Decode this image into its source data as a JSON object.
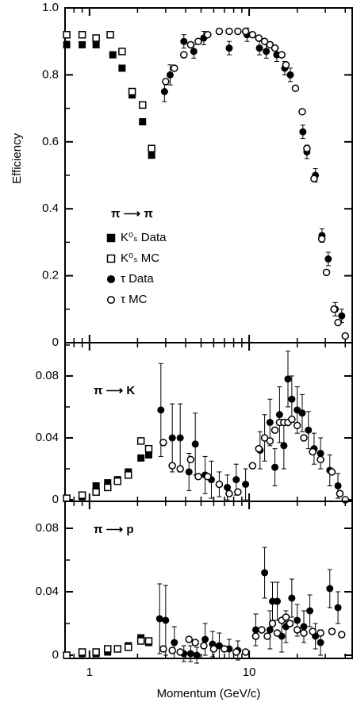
{
  "chart_data": [
    {
      "type": "scatter",
      "ylabel": "Efficiency",
      "annotation": "π ⟶ π",
      "xlim": [
        0.703,
        44.2
      ],
      "log_x": true,
      "xticks": [
        1,
        10
      ],
      "xminorticks": [
        0.8,
        0.9,
        2,
        3,
        4,
        5,
        6,
        7,
        8,
        9,
        20,
        30,
        40
      ],
      "ylim": [
        0,
        1
      ],
      "yticks": [
        0,
        0.2,
        0.4,
        0.6,
        0.8,
        {
          "value": 1,
          "label": "1.0"
        }
      ],
      "yminorticks": [
        0.1,
        0.3,
        0.5,
        0.7,
        0.9
      ],
      "series": [
        {
          "name": "K⁰ₛ Data",
          "marker": "square-filled",
          "x": [
            0.72,
            0.9,
            1.1,
            1.4,
            1.6,
            1.85,
            2.15,
            2.45
          ],
          "values": [
            0.89,
            0.89,
            0.89,
            0.86,
            0.82,
            0.74,
            0.66,
            0.56
          ]
        },
        {
          "name": "K⁰ₛ MC",
          "marker": "square-open",
          "x": [
            0.72,
            0.9,
            1.1,
            1.35,
            1.6,
            1.85,
            2.15,
            2.45
          ],
          "values": [
            0.92,
            0.92,
            0.91,
            0.92,
            0.87,
            0.75,
            0.71,
            0.58
          ]
        },
        {
          "name": "τ Data",
          "marker": "circle-filled",
          "x": [
            2.95,
            3.2,
            3.9,
            4.5,
            5.2,
            7.5,
            9.7,
            11.6,
            12.8,
            14.9,
            16.7,
            18.1,
            21.7,
            23,
            26,
            28.6,
            31.3,
            34.6,
            38
          ],
          "values": [
            0.75,
            0.8,
            0.9,
            0.87,
            0.91,
            0.88,
            0.92,
            0.88,
            0.87,
            0.86,
            0.82,
            0.8,
            0.63,
            0.57,
            0.5,
            0.32,
            0.25,
            0.1,
            0.08
          ],
          "errors": [
            0.03,
            0.03,
            0.02,
            0.02,
            0.02,
            0.02,
            0.02,
            0.02,
            0.02,
            0.02,
            0.02,
            0.02,
            0.02,
            0.02,
            0.02,
            0.02,
            0.02,
            0.02,
            0.02
          ]
        },
        {
          "name": "τ MC",
          "marker": "circle-open",
          "x": [
            3.0,
            3.4,
            3.9,
            4.3,
            4.8,
            5.5,
            6.5,
            7.5,
            8.5,
            9.5,
            10.5,
            11.5,
            12.5,
            13.5,
            14.5,
            16,
            17,
            19.5,
            21.5,
            23,
            25.5,
            28.5,
            30.5,
            34,
            36,
            40
          ],
          "values": [
            0.78,
            0.82,
            0.86,
            0.89,
            0.9,
            0.92,
            0.93,
            0.93,
            0.93,
            0.93,
            0.92,
            0.91,
            0.9,
            0.89,
            0.88,
            0.86,
            0.83,
            0.76,
            0.69,
            0.58,
            0.49,
            0.31,
            0.21,
            0.1,
            0.06,
            0.02
          ]
        }
      ]
    },
    {
      "type": "scatter",
      "annotation": "π ⟶ K",
      "xlim": [
        0.703,
        44.2
      ],
      "log_x": true,
      "xticks": [
        1,
        10
      ],
      "xminorticks": [
        0.8,
        0.9,
        2,
        3,
        4,
        5,
        6,
        7,
        8,
        9,
        20,
        30,
        40
      ],
      "ylim": [
        -0.001,
        0.1015
      ],
      "yticks": [
        0,
        0.04,
        0.08
      ],
      "yminorticks": [
        0.02,
        0.06,
        0.1
      ],
      "series": [
        {
          "marker": "square-filled",
          "x": [
            0.72,
            0.9,
            1.1,
            1.3,
            1.5,
            1.75,
            2.1,
            2.35
          ],
          "values": [
            0.001,
            0.002,
            0.009,
            0.011,
            0.013,
            0.018,
            0.027,
            0.029
          ]
        },
        {
          "marker": "square-open",
          "x": [
            0.72,
            0.9,
            1.1,
            1.3,
            1.5,
            1.75,
            2.1,
            2.35
          ],
          "values": [
            0.001,
            0.003,
            0.005,
            0.008,
            0.012,
            0.016,
            0.038,
            0.033
          ]
        },
        {
          "marker": "circle-filled",
          "x": [
            2.8,
            3.3,
            3.7,
            4.2,
            4.6,
            5.3,
            5.8,
            6.5,
            7.3,
            8.3,
            9.5,
            11.7,
            12.5,
            13.5,
            14.5,
            15.5,
            16.5,
            17.5,
            18.5,
            20,
            21.5,
            23.5,
            25.5,
            28,
            32,
            36
          ],
          "values": [
            0.058,
            0.04,
            0.04,
            0.018,
            0.036,
            0.016,
            0.013,
            0.01,
            0.008,
            0.013,
            0.01,
            0.032,
            0.04,
            0.05,
            0.021,
            0.055,
            0.035,
            0.078,
            0.065,
            0.058,
            0.056,
            0.045,
            0.033,
            0.03,
            0.019,
            0.009
          ],
          "errors": [
            0.03,
            0.022,
            0.022,
            0.012,
            0.02,
            0.012,
            0.012,
            0.008,
            0.008,
            0.01,
            0.01,
            0.012,
            0.015,
            0.015,
            0.012,
            0.018,
            0.015,
            0.018,
            0.015,
            0.015,
            0.012,
            0.012,
            0.01,
            0.01,
            0.01,
            0.008
          ]
        },
        {
          "marker": "circle-open",
          "x": [
            2.9,
            3.3,
            3.7,
            4.3,
            4.8,
            5.5,
            6.5,
            7.5,
            8.5,
            10.5,
            11.5,
            12.5,
            13.5,
            14.5,
            15.5,
            16.5,
            17.5,
            18.5,
            20,
            22,
            25,
            28,
            33,
            37,
            40
          ],
          "values": [
            0.037,
            0.022,
            0.02,
            0.026,
            0.015,
            0.015,
            0.01,
            0.004,
            0.005,
            0.022,
            0.033,
            0.04,
            0.038,
            0.045,
            0.05,
            0.05,
            0.05,
            0.052,
            0.048,
            0.04,
            0.031,
            0.026,
            0.018,
            0.004,
            0
          ]
        }
      ]
    },
    {
      "type": "scatter",
      "annotation": "π ⟶ p",
      "xlabel": "Momentum   (GeV/c)",
      "xlim": [
        0.703,
        44.2
      ],
      "log_x": true,
      "xticks": [
        1,
        10
      ],
      "xminorticks": [
        0.8,
        0.9,
        2,
        3,
        4,
        5,
        6,
        7,
        8,
        9,
        20,
        30,
        40
      ],
      "ylim": [
        -0.002,
        0.097
      ],
      "yticks": [
        0,
        0.04,
        0.08
      ],
      "yminorticks": [
        0.02,
        0.06
      ],
      "series": [
        {
          "marker": "square-filled",
          "x": [
            0.72,
            0.9,
            1.1,
            1.3,
            1.5,
            1.75,
            2.1,
            2.35
          ],
          "values": [
            0,
            0.001,
            0.001,
            0.002,
            0.004,
            0.006,
            0.011,
            0.008
          ]
        },
        {
          "marker": "square-open",
          "x": [
            0.72,
            0.9,
            1.1,
            1.3,
            1.5,
            1.75,
            2.1,
            2.35
          ],
          "values": [
            0,
            0.002,
            0.002,
            0.004,
            0.004,
            0.005,
            0.009,
            0.009
          ]
        },
        {
          "marker": "circle-filled",
          "x": [
            2.75,
            3.0,
            3.4,
            3.9,
            4.3,
            4.7,
            5.3,
            5.9,
            6.5,
            7.5,
            8.5,
            11,
            12.5,
            13.5,
            14,
            15,
            16,
            17,
            18.5,
            20,
            22,
            24,
            26,
            28,
            32,
            36
          ],
          "values": [
            0.023,
            0.022,
            0.008,
            0.001,
            0.001,
            0,
            0.01,
            0.007,
            0.006,
            0.004,
            0.003,
            0.016,
            0.052,
            0.016,
            0.034,
            0.034,
            0.012,
            0.018,
            0.036,
            0.022,
            0.018,
            0.028,
            0.012,
            0.008,
            0.042,
            0.03
          ],
          "errors": [
            0.022,
            0.022,
            0.01,
            0.005,
            0.005,
            0.005,
            0.01,
            0.008,
            0.008,
            0.006,
            0.006,
            0.01,
            0.016,
            0.012,
            0.012,
            0.012,
            0.01,
            0.01,
            0.012,
            0.01,
            0.01,
            0.01,
            0.008,
            0.008,
            0.012,
            0.01
          ]
        },
        {
          "marker": "circle-open",
          "x": [
            2.9,
            3.3,
            3.7,
            4.2,
            4.6,
            5.2,
            6,
            7,
            8.3,
            9.5,
            11,
            12,
            13,
            14,
            15,
            16,
            17,
            18,
            20,
            22,
            25,
            28,
            33,
            38
          ],
          "values": [
            0.004,
            0.003,
            0.002,
            0.01,
            0.008,
            0.006,
            0.004,
            0.004,
            0.002,
            0.002,
            0.012,
            0.016,
            0.012,
            0.02,
            0.014,
            0.022,
            0.024,
            0.02,
            0.016,
            0.014,
            0.015,
            0.014,
            0.015,
            0.013
          ]
        }
      ]
    }
  ]
}
